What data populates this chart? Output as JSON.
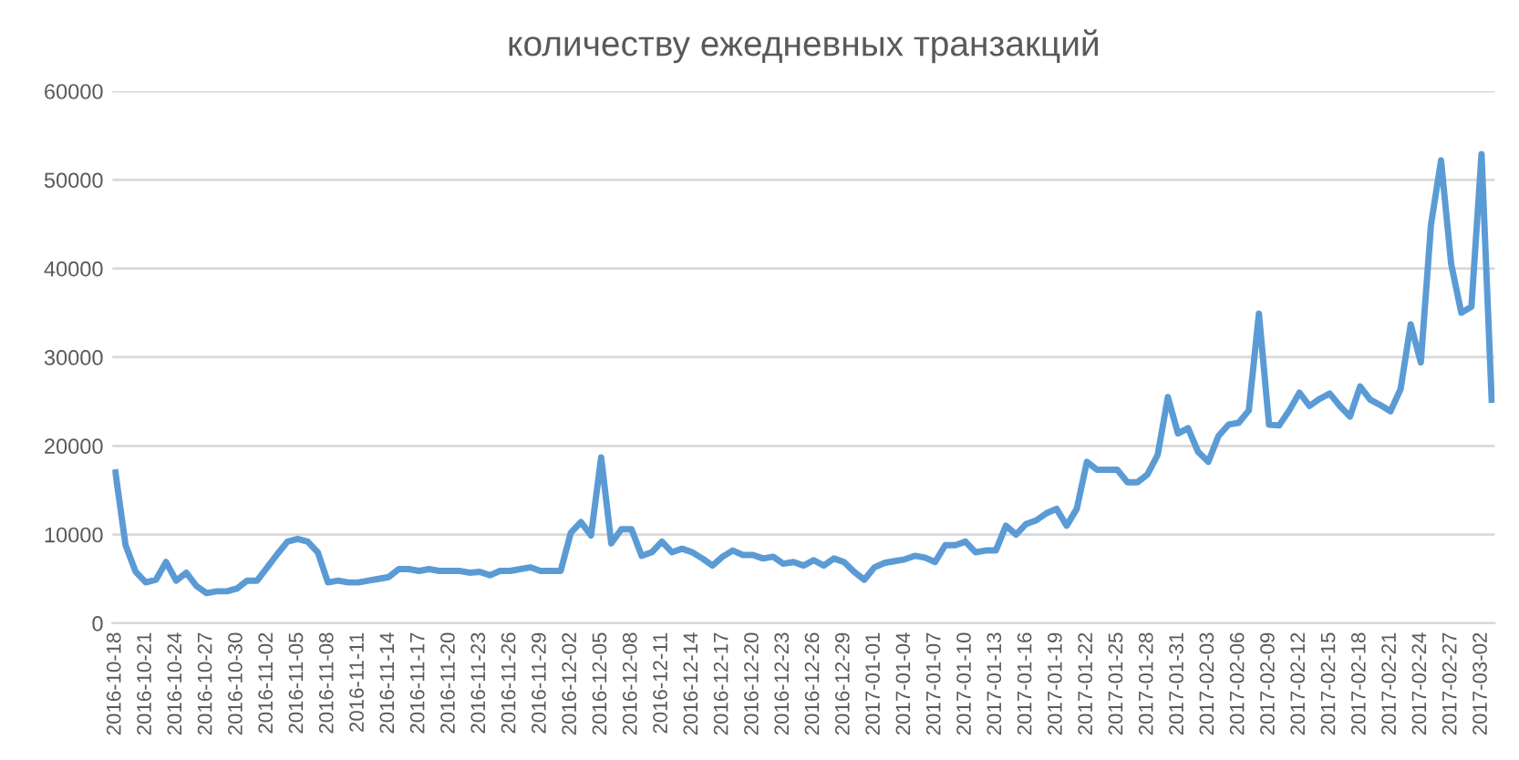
{
  "chart_data": {
    "type": "line",
    "title": "количеству ежедневных транзакций",
    "categories": [
      "2016-10-18",
      null,
      null,
      "2016-10-21",
      null,
      null,
      "2016-10-24",
      null,
      null,
      "2016-10-27",
      null,
      null,
      "2016-10-30",
      null,
      null,
      "2016-11-02",
      null,
      null,
      "2016-11-05",
      null,
      null,
      "2016-11-08",
      null,
      null,
      "2016-11-11",
      null,
      null,
      "2016-11-14",
      null,
      null,
      "2016-11-17",
      null,
      null,
      "2016-11-20",
      null,
      null,
      "2016-11-23",
      null,
      null,
      "2016-11-26",
      null,
      null,
      "2016-11-29",
      null,
      null,
      "2016-12-02",
      null,
      null,
      "2016-12-05",
      null,
      null,
      "2016-12-08",
      null,
      null,
      "2016-12-11",
      null,
      null,
      "2016-12-14",
      null,
      null,
      "2016-12-17",
      null,
      null,
      "2016-12-20",
      null,
      null,
      "2016-12-23",
      null,
      null,
      "2016-12-26",
      null,
      null,
      "2016-12-29",
      null,
      null,
      "2017-01-01",
      null,
      null,
      "2017-01-04",
      null,
      null,
      "2017-01-07",
      null,
      null,
      "2017-01-10",
      null,
      null,
      "2017-01-13",
      null,
      null,
      "2017-01-16",
      null,
      null,
      "2017-01-19",
      null,
      null,
      "2017-01-22",
      null,
      null,
      "2017-01-25",
      null,
      null,
      "2017-01-28",
      null,
      null,
      "2017-01-31",
      null,
      null,
      "2017-02-03",
      null,
      null,
      "2017-02-06",
      null,
      null,
      "2017-02-09",
      null,
      null,
      "2017-02-12",
      null,
      null,
      "2017-02-15",
      null,
      null,
      "2017-02-18",
      null,
      null,
      "2017-02-21",
      null,
      null,
      "2017-02-24",
      null,
      null,
      "2017-02-27",
      null,
      null,
      "2017-03-02",
      null
    ],
    "series": [
      {
        "color": "#5b9bd5",
        "values": [
          17000,
          8800,
          5800,
          4600,
          4900,
          6900,
          4800,
          5700,
          4200,
          3400,
          3600,
          3600,
          3900,
          4800,
          4800,
          6300,
          7800,
          9200,
          9500,
          9200,
          8000,
          4600,
          4800,
          4600,
          4600,
          4800,
          5000,
          5200,
          6100,
          6100,
          5900,
          6100,
          5900,
          5900,
          5900,
          5700,
          5800,
          5400,
          5900,
          5900,
          6100,
          6300,
          5900,
          5900,
          5900,
          10200,
          11400,
          9900,
          18700,
          9000,
          10600,
          10600,
          7600,
          8000,
          9200,
          8000,
          8400,
          8000,
          7300,
          6500,
          7500,
          8200,
          7700,
          7700,
          7300,
          7500,
          6700,
          6900,
          6500,
          7100,
          6500,
          7300,
          6900,
          5800,
          4900,
          6300,
          6800,
          7000,
          7200,
          7600,
          7400,
          6900,
          8800,
          8800,
          9200,
          8000,
          8200,
          8200,
          11000,
          10000,
          11200,
          11600,
          12400,
          12900,
          11000,
          12900,
          18200,
          17300,
          17300,
          17300,
          15900,
          15900,
          16800,
          19000,
          25500,
          21400,
          22000,
          19300,
          18200,
          21100,
          22400,
          22600,
          24000,
          34900,
          22400,
          22300,
          24000,
          26000,
          24500,
          25300,
          25900,
          24500,
          23300,
          26700,
          25200,
          24600,
          23900,
          26400,
          33700,
          29400,
          44900,
          52200,
          40500,
          35000,
          35700,
          52900,
          25200
        ]
      }
    ],
    "ylim": [
      0,
      60000
    ],
    "yticks": [
      0,
      10000,
      20000,
      30000,
      40000,
      50000,
      60000
    ],
    "grid": "y",
    "marker": "none",
    "line_style": "solid"
  }
}
